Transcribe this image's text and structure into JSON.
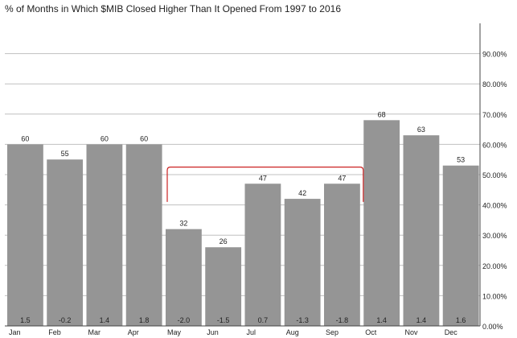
{
  "chart_data": {
    "type": "bar",
    "title": "% of Months in Which $MIB Closed Higher Than It Opened From 1997 to 2016",
    "categories": [
      "Jan",
      "Feb",
      "Mar",
      "Apr",
      "May",
      "Jun",
      "Jul",
      "Aug",
      "Sep",
      "Oct",
      "Nov",
      "Dec"
    ],
    "values": [
      60,
      55,
      60,
      60,
      32,
      26,
      47,
      42,
      47,
      68,
      63,
      53
    ],
    "bottom_labels": [
      "1.5",
      "-0.2",
      "1.4",
      "1.8",
      "-2.0",
      "-1.5",
      "0.7",
      "-1.3",
      "-1.8",
      "1.4",
      "1.4",
      "1.6"
    ],
    "y_ticks": [
      "0.00%",
      "10.00%",
      "20.00%",
      "30.00%",
      "40.00%",
      "50.00%",
      "60.00%",
      "70.00%",
      "80.00%",
      "90.00%"
    ],
    "y_tick_values": [
      0,
      10,
      20,
      30,
      40,
      50,
      60,
      70,
      80,
      90
    ],
    "ylim": [
      0,
      100
    ],
    "y_axis_position": "right",
    "grid": true,
    "bar_color": "#959595",
    "grid_color": "#c0c0c0",
    "annotation": {
      "type": "bracket",
      "from": "May",
      "to": "Sep",
      "color": "#cc2222"
    }
  }
}
